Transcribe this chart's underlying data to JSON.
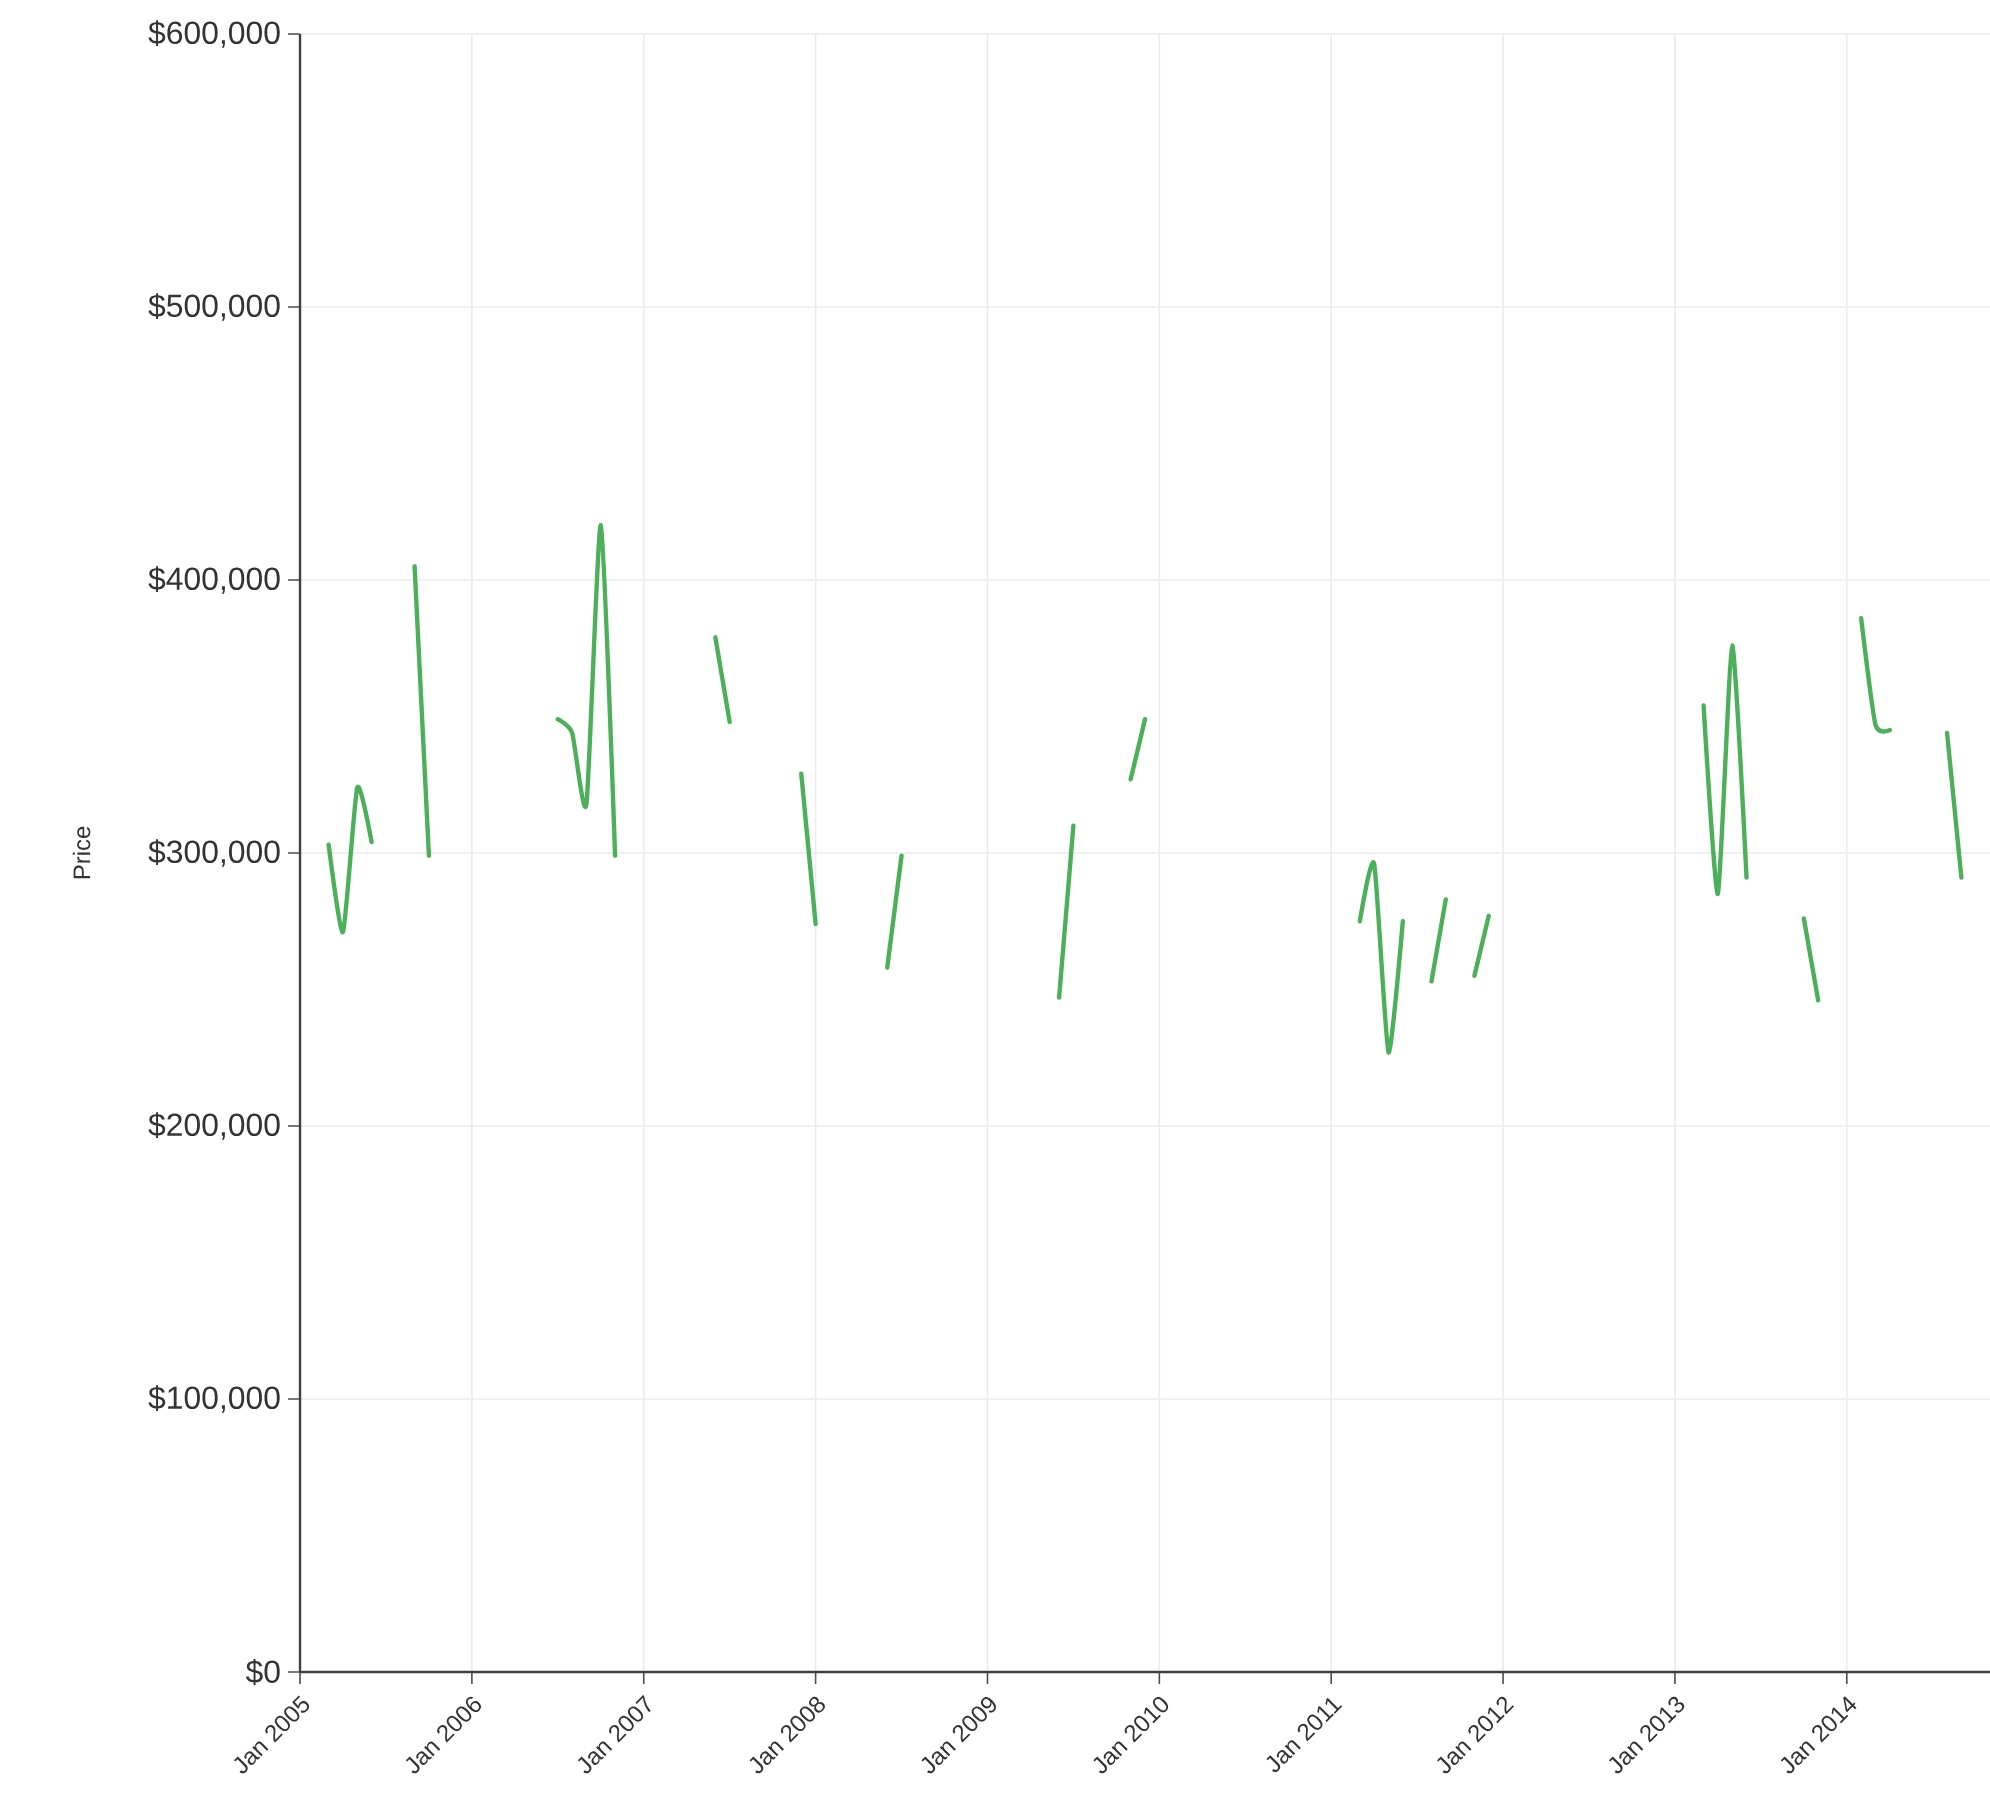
{
  "chart_data": {
    "type": "line",
    "ylabel": "Price",
    "x": [
      "2005-03",
      "2005-04",
      "2005-05",
      "2005-06",
      "2005-07",
      "2005-08",
      "2005-09",
      "2005-10",
      "2005-11",
      "2006-06",
      "2006-07",
      "2006-08",
      "2006-09",
      "2006-10",
      "2006-11",
      "2006-12",
      "2007-06",
      "2007-07",
      "2007-08",
      "2007-12",
      "2008-01",
      "2008-02",
      "2008-06",
      "2008-07",
      "2008-08",
      "2009-06",
      "2009-07",
      "2009-08",
      "2009-11",
      "2009-12",
      "2010-01",
      "2011-03",
      "2011-04",
      "2011-05",
      "2011-06",
      "2011-07",
      "2011-08",
      "2011-09",
      "2011-10",
      "2011-11",
      "2011-12",
      "2012-01",
      "2013-03",
      "2013-04",
      "2013-05",
      "2013-06",
      "2013-07",
      "2013-10",
      "2013-11",
      "2013-12",
      "2014-02",
      "2014-03",
      "2014-04",
      "2014-05",
      "2014-08",
      "2014-09"
    ],
    "series": [
      {
        "color": "#4caf5a",
        "values": [
          303000,
          271000,
          324000,
          304000,
          null,
          null,
          405000,
          299000,
          null,
          null,
          349000,
          344000,
          318000,
          420000,
          299000,
          null,
          379000,
          348000,
          null,
          329000,
          274000,
          null,
          258000,
          299000,
          null,
          247000,
          310000,
          null,
          327000,
          349000,
          null,
          275000,
          296000,
          227000,
          275000,
          null,
          253000,
          283000,
          null,
          255000,
          277000,
          null,
          354000,
          285000,
          376000,
          291000,
          null,
          276000,
          246000,
          null,
          386000,
          347000,
          345000,
          null,
          344000,
          291000
        ]
      }
    ],
    "xlim": [
      "2005-01",
      "2014-11"
    ],
    "xticks": [
      {
        "value": "2005-01",
        "label": "Jan 2005"
      },
      {
        "value": "2006-01",
        "label": "Jan 2006"
      },
      {
        "value": "2007-01",
        "label": "Jan 2007"
      },
      {
        "value": "2008-01",
        "label": "Jan 2008"
      },
      {
        "value": "2009-01",
        "label": "Jan 2009"
      },
      {
        "value": "2010-01",
        "label": "Jan 2010"
      },
      {
        "value": "2011-01",
        "label": "Jan 2011"
      },
      {
        "value": "2012-01",
        "label": "Jan 2012"
      },
      {
        "value": "2013-01",
        "label": "Jan 2013"
      },
      {
        "value": "2014-01",
        "label": "Jan 2014"
      }
    ],
    "ylim": [
      0,
      600000
    ],
    "yticks": [
      {
        "value": 0,
        "label": "$0"
      },
      {
        "value": 100000,
        "label": "$100,000"
      },
      {
        "value": 200000,
        "label": "$200,000"
      },
      {
        "value": 300000,
        "label": "$300,000"
      },
      {
        "value": 400000,
        "label": "$400,000"
      },
      {
        "value": 500000,
        "label": "$500,000"
      },
      {
        "value": 600000,
        "label": "$600,000"
      }
    ],
    "grid": true
  }
}
